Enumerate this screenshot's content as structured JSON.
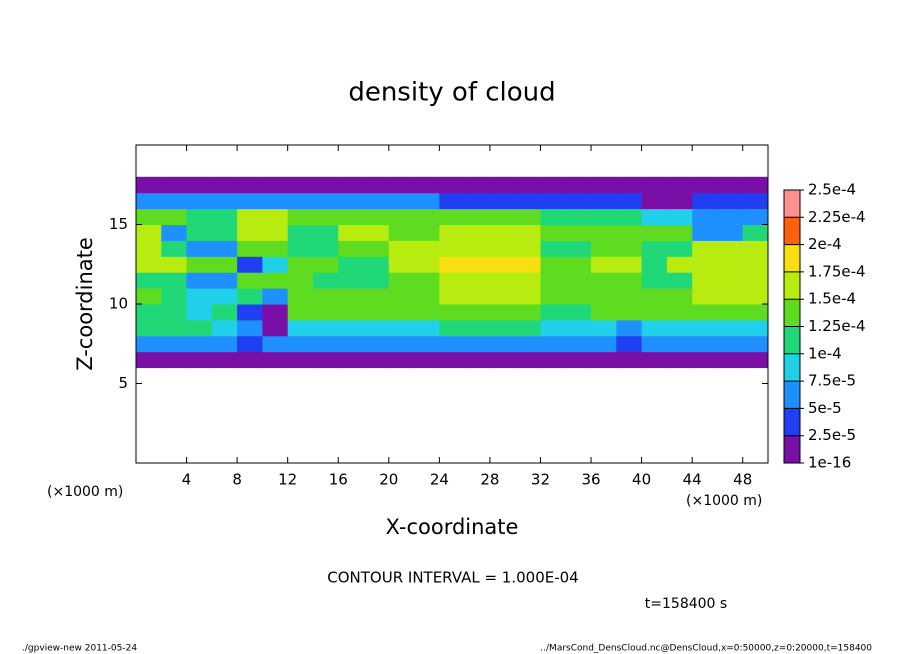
{
  "chart_data": {
    "type": "heatmap",
    "title": "density of cloud",
    "xlabel": "X-coordinate",
    "ylabel": "Z-coordinate",
    "xunit": "(×1000 m)",
    "xunit_corner": "(×1000 m)",
    "annotation": "CONTOUR INTERVAL = 1.000E-04",
    "time_label": "t=158400 s",
    "footer_left": "./gpview-new  2011-05-24",
    "footer_right": "../MarsCond_DensCloud.nc@DensCloud,x=0:50000,z=0:20000,t=158400",
    "xlim": [
      0,
      50
    ],
    "ylim": [
      0,
      20
    ],
    "xticks": [
      4,
      8,
      12,
      16,
      20,
      24,
      28,
      32,
      36,
      40,
      44,
      48
    ],
    "yticks": [
      5,
      10,
      15
    ],
    "x": [
      0,
      2,
      4,
      6,
      8,
      10,
      12,
      14,
      16,
      18,
      20,
      22,
      24,
      26,
      28,
      30,
      32,
      34,
      36,
      38,
      40,
      42,
      44,
      46,
      48,
      50
    ],
    "y": [
      6,
      7,
      8,
      9,
      10,
      11,
      12,
      13,
      14,
      15,
      16,
      17,
      18
    ],
    "values": [
      [
        5e-06,
        5e-06,
        5e-06,
        5e-06,
        5e-06,
        5e-06,
        5e-06,
        5e-06,
        5e-06,
        5e-06,
        5e-06,
        5e-06,
        5e-06,
        5e-06,
        5e-06,
        5e-06,
        5e-06,
        5e-06,
        5e-06,
        5e-06,
        5e-06,
        5e-06,
        5e-06,
        5e-06,
        5e-06
      ],
      [
        7e-05,
        7e-05,
        7e-05,
        7e-05,
        3e-05,
        5e-05,
        5e-05,
        5e-05,
        5e-05,
        5e-05,
        5e-05,
        5e-05,
        5e-05,
        5e-05,
        5e-05,
        5e-05,
        5e-05,
        5e-05,
        5e-05,
        3e-05,
        5e-05,
        5e-05,
        5e-05,
        5e-05,
        5e-05
      ],
      [
        0.00011,
        0.00011,
        0.00011,
        9e-05,
        6e-05,
        2e-05,
        9e-05,
        9e-05,
        9e-05,
        9e-05,
        9e-05,
        9e-05,
        0.0001,
        0.0001,
        0.0001,
        0.0001,
        9e-05,
        9e-05,
        9e-05,
        6e-05,
        8e-05,
        8e-05,
        8e-05,
        8e-05,
        8e-05
      ],
      [
        0.00012,
        0.00012,
        9e-05,
        0.0001,
        4e-05,
        2e-05,
        0.00013,
        0.00013,
        0.00013,
        0.00013,
        0.00013,
        0.00013,
        0.00014,
        0.00014,
        0.00014,
        0.00014,
        0.00012,
        0.00012,
        0.00013,
        0.00013,
        0.00013,
        0.00013,
        0.00013,
        0.00013,
        0.00013
      ],
      [
        0.00013,
        0.00012,
        8e-05,
        8e-05,
        0.00011,
        7e-05,
        0.00013,
        0.00013,
        0.00014,
        0.00014,
        0.00014,
        0.00014,
        0.00016,
        0.00016,
        0.00016,
        0.00016,
        0.00013,
        0.00013,
        0.00014,
        0.00014,
        0.00013,
        0.00013,
        0.00015,
        0.00015,
        0.00015
      ],
      [
        0.00012,
        0.00012,
        6e-05,
        6e-05,
        0.00013,
        0.00013,
        0.00013,
        0.00011,
        0.00011,
        0.00011,
        0.00014,
        0.00014,
        0.00017,
        0.00017,
        0.00017,
        0.00017,
        0.00014,
        0.00014,
        0.00014,
        0.00014,
        0.00011,
        0.00011,
        0.00016,
        0.00016,
        0.00016
      ],
      [
        0.00016,
        0.00016,
        0.00013,
        0.00013,
        4e-05,
        9e-05,
        0.00014,
        0.00014,
        0.00012,
        0.00012,
        0.00015,
        0.00015,
        0.00018,
        0.00018,
        0.00018,
        0.00018,
        0.00013,
        0.00013,
        0.00015,
        0.00015,
        0.0001,
        0.00017,
        0.00017,
        0.00017,
        0.00017
      ],
      [
        0.00017,
        0.00012,
        6e-05,
        6e-05,
        0.00013,
        0.00013,
        0.00011,
        0.00011,
        0.00013,
        0.00013,
        0.00015,
        0.00015,
        0.00017,
        0.00017,
        0.00017,
        0.00017,
        0.00012,
        0.00012,
        0.00014,
        0.00014,
        0.00011,
        0.00011,
        0.00016,
        0.00016,
        0.00016
      ],
      [
        0.00016,
        7e-05,
        0.00012,
        0.00012,
        0.00017,
        0.00017,
        0.00012,
        0.00012,
        0.00015,
        0.00015,
        0.00014,
        0.00014,
        0.00015,
        0.00015,
        0.00015,
        0.00015,
        0.00014,
        0.00014,
        0.00013,
        0.00013,
        0.00014,
        0.00014,
        6e-05,
        6e-05,
        0.00012
      ],
      [
        0.00013,
        0.00013,
        0.00011,
        0.00011,
        0.00015,
        0.00015,
        0.00014,
        0.00014,
        0.00014,
        0.00014,
        0.00014,
        0.00014,
        0.00013,
        0.00013,
        0.00013,
        0.00013,
        0.00012,
        0.00012,
        0.0001,
        0.0001,
        9e-05,
        9e-05,
        6e-05,
        6e-05,
        6e-05
      ],
      [
        5e-05,
        5e-05,
        6e-05,
        6e-05,
        6e-05,
        6e-05,
        6e-05,
        7e-05,
        7e-05,
        7e-05,
        7e-05,
        7e-05,
        4e-05,
        4e-05,
        4e-05,
        4e-05,
        3e-05,
        3e-05,
        3e-05,
        3e-05,
        2e-05,
        2e-05,
        3e-05,
        3e-05,
        3e-05
      ],
      [
        3e-06,
        3e-06,
        3e-06,
        3e-06,
        3e-06,
        3e-06,
        3e-06,
        3e-06,
        3e-06,
        3e-06,
        3e-06,
        3e-06,
        3e-06,
        3e-06,
        3e-06,
        3e-06,
        3e-06,
        3e-06,
        3e-06,
        3e-06,
        3e-06,
        3e-06,
        1e-05,
        1e-05,
        1e-05
      ]
    ],
    "colorbar": {
      "levels": [
        {
          "value": 1e-16,
          "label": "1e-16"
        },
        {
          "value": 2.5e-05,
          "label": "2.5e-5"
        },
        {
          "value": 5e-05,
          "label": "5e-5"
        },
        {
          "value": 7.5e-05,
          "label": "7.5e-5"
        },
        {
          "value": 0.0001,
          "label": "1e-4"
        },
        {
          "value": 0.000125,
          "label": "1.25e-4"
        },
        {
          "value": 0.00015,
          "label": "1.5e-4"
        },
        {
          "value": 0.000175,
          "label": "1.75e-4"
        },
        {
          "value": 0.0002,
          "label": "2e-4"
        },
        {
          "value": 0.000225,
          "label": "2.25e-4"
        },
        {
          "value": 0.00025,
          "label": "2.5e-4"
        }
      ],
      "colors": [
        "#7a0fa8",
        "#1f3ff0",
        "#1e90ff",
        "#20d0e8",
        "#20d878",
        "#60dc20",
        "#b8ec10",
        "#f8e010",
        "#ff6010",
        "#ff9090"
      ]
    }
  }
}
